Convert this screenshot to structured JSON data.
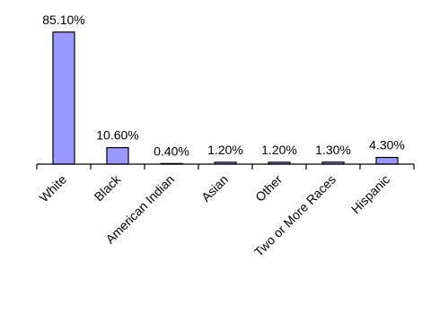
{
  "chart_data": {
    "type": "bar",
    "categories": [
      "White",
      "Black",
      "American Indian",
      "Asian",
      "Other",
      "Two or More Races",
      "Hispanic"
    ],
    "values": [
      85.1,
      10.6,
      0.4,
      1.2,
      1.2,
      1.3,
      4.3
    ],
    "data_labels": [
      "85.10%",
      "10.60%",
      "0.40%",
      "1.20%",
      "1.20%",
      "1.30%",
      "4.30%"
    ],
    "bar_color": "#9999ff",
    "ylim": [
      0,
      100
    ],
    "grid": false,
    "legend": "none"
  }
}
